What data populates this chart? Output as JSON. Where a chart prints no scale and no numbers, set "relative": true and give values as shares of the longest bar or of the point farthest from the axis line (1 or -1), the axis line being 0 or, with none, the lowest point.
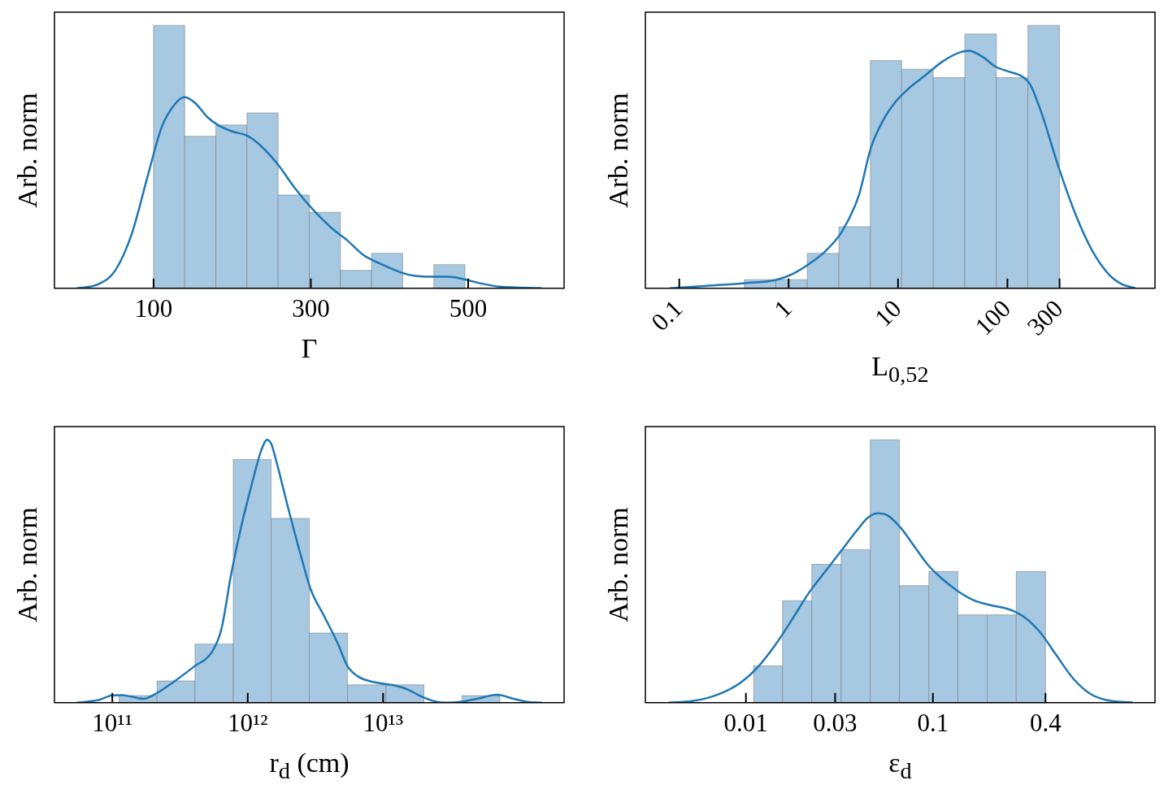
{
  "chart_data": [
    {
      "type": "histogram",
      "xlabel": "Γ",
      "ylabel": "Arb. norm",
      "relative": true,
      "tick_labels": "x",
      "color": "#a6c8e1",
      "bins": [
        100,
        139.6,
        179.2,
        218.8,
        258.4,
        298,
        337.6,
        377.2,
        416.8,
        456.4,
        496
      ],
      "values": [
        1,
        0.578,
        0.621,
        0.667,
        0.355,
        0.289,
        0.068,
        0.133,
        0,
        0.09
      ],
      "xlim": [
        -26,
        622
      ],
      "xticks": [
        100,
        300,
        500
      ],
      "series": [
        {
          "type": "line",
          "color": "#1f77b4",
          "x": [
            2.5,
            30,
            51.1,
            72.2,
            93.2,
            110.1,
            127,
            139.7,
            152.3,
            169.2,
            181.9,
            198.7,
            219.8,
            236.7,
            257.8,
            278.9,
            300,
            325.3,
            346.4,
            367.5,
            388.6,
            413.9,
            430.8,
            456.1,
            473,
            494.1,
            515.2,
            540.5,
            593.2
          ],
          "values": [
            0,
            0.016,
            0.067,
            0.206,
            0.434,
            0.611,
            0.7,
            0.727,
            0.706,
            0.649,
            0.621,
            0.598,
            0.579,
            0.541,
            0.472,
            0.384,
            0.308,
            0.232,
            0.182,
            0.125,
            0.093,
            0.061,
            0.048,
            0.044,
            0.044,
            0.035,
            0.019,
            0.006,
            0.001
          ]
        }
      ]
    },
    {
      "type": "histogram",
      "xlabel": "L$_{0,52}$",
      "ylabel": "Arb. norm",
      "relative": true,
      "tick_labels": "x",
      "log": "x",
      "color": "#a6c8e1",
      "bins": [
        0.394,
        0.764,
        1.48,
        2.88,
        5.58,
        10.8,
        21,
        40.8,
        79.3,
        154,
        299
      ],
      "values": [
        0.033,
        0.033,
        0.133,
        0.234,
        0.866,
        0.833,
        0.801,
        0.967,
        0.801,
        1
      ],
      "xlim": [
        0.049,
        2235
      ],
      "xticks": [
        0.1,
        1,
        10,
        100,
        300
      ],
      "series": [
        {
          "type": "line",
          "color": "#1f77b4",
          "x": [
            0.0816,
            0.189,
            0.38,
            0.766,
            1.09,
            1.54,
            2.19,
            3.11,
            4.41,
            5.64,
            7.2,
            9.53,
            12.6,
            17.9,
            25.4,
            36.1,
            44.5,
            58.9,
            77.8,
            103,
            136,
            162,
            207,
            294,
            418,
            593,
            841,
            1110,
            1473
          ],
          "values": [
            0,
            0.01,
            0.019,
            0.032,
            0.055,
            0.093,
            0.143,
            0.219,
            0.357,
            0.533,
            0.634,
            0.71,
            0.761,
            0.811,
            0.862,
            0.896,
            0.903,
            0.881,
            0.843,
            0.824,
            0.806,
            0.774,
            0.662,
            0.46,
            0.283,
            0.145,
            0.054,
            0.016,
            0.001
          ]
        }
      ]
    },
    {
      "type": "histogram",
      "xlabel": "r$_{d}$ (cm)",
      "ylabel": "Arb. norm",
      "relative": true,
      "tick_labels": "x",
      "log": "x",
      "color": "#a6c8e1",
      "bins": [
        112000000000.0,
        214000000000.0,
        408000000000.0,
        782000000000.0,
        1490000000000.0,
        2850000000000.0,
        5460000000000.0,
        10500000000000.0,
        20000000000000.0,
        38200000000000.0,
        72800000000000.0
      ],
      "values": [
        0.027,
        0.083,
        0.223,
        0.925,
        0.701,
        0.265,
        0.068,
        0.068,
        0,
        0.027
      ],
      "xlim": [
        37400000000.0,
        217000000000000.0
      ],
      "xticks": [
        {
          "value": 100000000000.0,
          "label": "10¹¹"
        },
        {
          "value": 1000000000000.0,
          "label": "10¹²"
        },
        {
          "value": 10000000000000.0,
          "label": "10¹³"
        }
      ],
      "series": [
        {
          "type": "line",
          "color": "#1f77b4",
          "x": [
            54600000000.0,
            78900000000.0,
            100000000000.0,
            117000000000.0,
            139000000000.0,
            169000000000.0,
            206000000000.0,
            289000000000.0,
            406000000000.0,
            538000000000.0,
            638000000000.0,
            757000000000.0,
            895000000000.0,
            1060000000000.0,
            1260000000000.0,
            1390000000000.0,
            1490000000000.0,
            1670000000000.0,
            1980000000000.0,
            2480000000000.0,
            2930000000000.0,
            3680000000000.0,
            4610000000000.0,
            5460000000000.0,
            6470000000000.0,
            8590000000000.0,
            12100000000000.0,
            15100000000000.0,
            18900000000000.0,
            23700000000000.0,
            29800000000000.0,
            37300000000000.0,
            49400000000000.0,
            69500000000000.0,
            92000000000000.0,
            116000000000000.0,
            149000000000000.0
          ],
          "values": [
            0,
            0.01,
            0.028,
            0.029,
            0.023,
            0.015,
            0.032,
            0.082,
            0.139,
            0.189,
            0.278,
            0.492,
            0.669,
            0.821,
            0.96,
            1,
            0.985,
            0.896,
            0.745,
            0.556,
            0.429,
            0.328,
            0.227,
            0.139,
            0.101,
            0.078,
            0.066,
            0.051,
            0.025,
            0.006,
            0,
            0.003,
            0.015,
            0.03,
            0.015,
            0.003,
            0
          ]
        }
      ]
    },
    {
      "type": "histogram",
      "xlabel": "ε$_{d}$",
      "ylabel": "Arb. norm",
      "relative": true,
      "tick_labels": "x",
      "log": "x",
      "color": "#a6c8e1",
      "bins": [
        0.011,
        0.0157,
        0.0225,
        0.0323,
        0.0462,
        0.0662,
        0.0951,
        0.136,
        0.195,
        0.279,
        0.4
      ],
      "values": [
        0.14,
        0.388,
        0.526,
        0.582,
        1,
        0.445,
        0.499,
        0.334,
        0.334,
        0.499
      ],
      "xlim": [
        0.0029,
        1.54
      ],
      "xticks": [
        0.01,
        0.03,
        0.1,
        0.4
      ],
      "series": [
        {
          "type": "line",
          "color": "#1f77b4",
          "x": [
            0.00386,
            0.00514,
            0.00631,
            0.00773,
            0.00948,
            0.0116,
            0.0143,
            0.0175,
            0.0215,
            0.0263,
            0.0323,
            0.0396,
            0.0448,
            0.0506,
            0.0572,
            0.0673,
            0.0793,
            0.0933,
            0.11,
            0.135,
            0.165,
            0.203,
            0.248,
            0.281,
            0.318,
            0.374,
            0.458,
            0.562,
            0.69,
            0.846,
            1.17
          ],
          "values": [
            0,
            0.006,
            0.019,
            0.042,
            0.079,
            0.136,
            0.218,
            0.312,
            0.413,
            0.495,
            0.577,
            0.659,
            0.703,
            0.72,
            0.712,
            0.665,
            0.596,
            0.527,
            0.476,
            0.426,
            0.39,
            0.371,
            0.358,
            0.343,
            0.318,
            0.268,
            0.18,
            0.092,
            0.035,
            0.01,
            0.001
          ]
        }
      ]
    }
  ]
}
